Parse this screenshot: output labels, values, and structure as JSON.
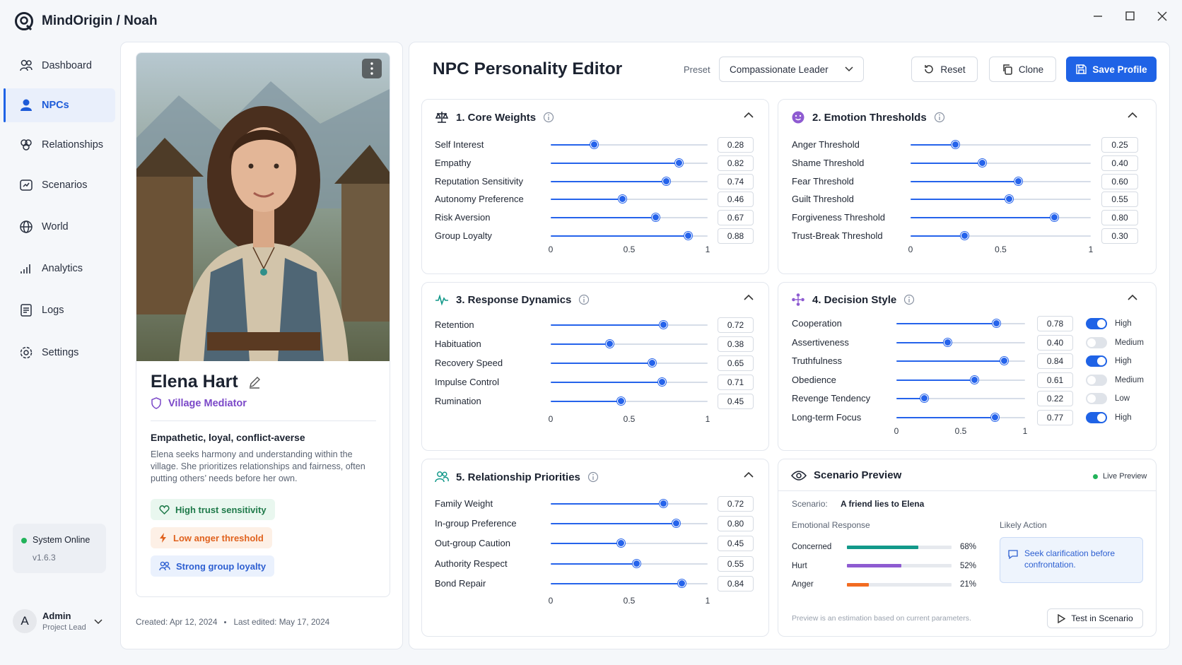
{
  "app": {
    "brand": "MindOrigin / Noah"
  },
  "nav": {
    "items": [
      "Dashboard",
      "NPCs",
      "Relationships",
      "Scenarios",
      "World",
      "Analytics",
      "Logs",
      "Settings"
    ],
    "active": 1
  },
  "status": {
    "text": "System Online",
    "version": "v1.6.3"
  },
  "user": {
    "initial": "A",
    "name": "Admin",
    "role": "Project Lead"
  },
  "profile": {
    "name": "Elena Hart",
    "role": "Village Mediator",
    "headline": "Empathetic, loyal, conflict-averse",
    "description": "Elena seeks harmony and understanding within the village. She prioritizes relationships and fairness, often putting others’ needs before her own.",
    "tags": [
      "High trust sensitivity",
      "Low anger threshold",
      "Strong group loyalty"
    ],
    "created": "Created: Apr 12, 2024",
    "edited": "Last edited: May 17, 2024"
  },
  "editor": {
    "title": "NPC Personality Editor",
    "preset_label": "Preset",
    "preset": "Compassionate Leader",
    "actions": [
      "Reset",
      "Clone",
      "Save Profile"
    ]
  },
  "panels": [
    {
      "title": "1. Core Weights",
      "labels": [
        "Self Interest",
        "Empathy",
        "Reputation Sensitivity",
        "Autonomy Preference",
        "Risk Aversion",
        "Group Loyalty"
      ],
      "values": [
        0.28,
        0.82,
        0.74,
        0.46,
        0.67,
        0.88
      ],
      "value_labels": [
        "0.28",
        "0.82",
        "0.74",
        "0.46",
        "0.67",
        "0.88"
      ],
      "xlim": [
        0,
        1
      ],
      "xticks": [
        0,
        0.5,
        1
      ]
    },
    {
      "title": "2. Emotion Thresholds",
      "labels": [
        "Anger Threshold",
        "Shame Threshold",
        "Fear Threshold",
        "Guilt Threshold",
        "Forgiveness Threshold",
        "Trust-Break Threshold"
      ],
      "values": [
        0.25,
        0.4,
        0.6,
        0.55,
        0.8,
        0.3
      ],
      "value_labels": [
        "0.25",
        "0.40",
        "0.60",
        "0.55",
        "0.80",
        "0.30"
      ],
      "xlim": [
        0,
        1
      ],
      "xticks": [
        0,
        0.5,
        1
      ]
    },
    {
      "title": "3. Response Dynamics",
      "labels": [
        "Retention",
        "Habituation",
        "Recovery Speed",
        "Impulse Control",
        "Rumination"
      ],
      "values": [
        0.72,
        0.38,
        0.65,
        0.71,
        0.45
      ],
      "value_labels": [
        "0.72",
        "0.38",
        "0.65",
        "0.71",
        "0.45"
      ],
      "xlim": [
        0,
        1
      ],
      "xticks": [
        0,
        0.5,
        1
      ]
    },
    {
      "title": "4. Decision Style",
      "labels": [
        "Cooperation",
        "Assertiveness",
        "Truthfulness",
        "Obedience",
        "Revenge Tendency",
        "Long-term Focus"
      ],
      "values": [
        0.78,
        0.4,
        0.84,
        0.61,
        0.22,
        0.77
      ],
      "value_labels": [
        "0.78",
        "0.40",
        "0.84",
        "0.61",
        "0.22",
        "0.77"
      ],
      "modes": [
        "High",
        "Medium",
        "High",
        "Medium",
        "Low",
        "High"
      ],
      "toggles": [
        true,
        false,
        true,
        false,
        false,
        true
      ],
      "xlim": [
        0,
        1
      ],
      "xticks": [
        0,
        0.5,
        1
      ]
    },
    {
      "title": "5. Relationship Priorities",
      "labels": [
        "Family Weight",
        "In-group Preference",
        "Out-group Caution",
        "Authority Respect",
        "Bond Repair"
      ],
      "values": [
        0.72,
        0.8,
        0.45,
        0.55,
        0.84
      ],
      "value_labels": [
        "0.72",
        "0.80",
        "0.45",
        "0.55",
        "0.84"
      ],
      "xlim": [
        0,
        1
      ],
      "xticks": [
        0,
        0.5,
        1
      ]
    }
  ],
  "preview": {
    "title": "Scenario Preview",
    "live": "Live Preview",
    "scenario_label": "Scenario:",
    "scenario": "A friend lies to Elena",
    "emotion_label": "Emotional Response",
    "emotions": {
      "categories": [
        "Concerned",
        "Hurt",
        "Anger"
      ],
      "values": [
        68,
        52,
        21
      ],
      "value_labels": [
        "68%",
        "52%",
        "21%"
      ],
      "colors": [
        "#13998a",
        "#8e5bd1",
        "#f26b21"
      ],
      "xlim": [
        0,
        100
      ]
    },
    "action_label": "Likely Action",
    "action": "Seek clarification before confrontation.",
    "note": "Preview is an estimation based on current parameters.",
    "button": "Test in Scenario"
  }
}
